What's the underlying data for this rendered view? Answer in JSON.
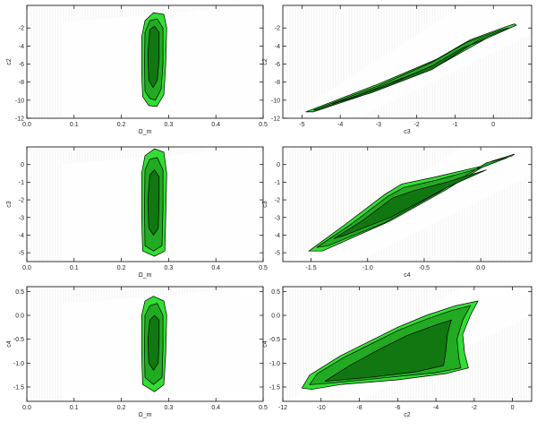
{
  "colors": {
    "outer": "#33dd33",
    "middle": "#22aa22",
    "inner": "#117711",
    "grid": "#cccccc",
    "frame": "#000000",
    "hatch_bg": "#e8e8e8"
  },
  "chart_data": [
    {
      "type": "contour",
      "panel": "top-left",
      "xlabel": "Ω_m",
      "ylabel": "c2",
      "xlim": [
        0.0,
        0.5
      ],
      "ylim": [
        -12,
        0.5
      ],
      "xticks": [
        "0.0",
        "0.1",
        "0.2",
        "0.3",
        "0.4",
        "0.5"
      ],
      "yticks": [
        "-12",
        "-10",
        "-8",
        "-6",
        "-4",
        "-2"
      ],
      "ytick_values": [
        -12,
        -10,
        -8,
        -6,
        -4,
        -2
      ],
      "xtick_values": [
        0.0,
        0.1,
        0.2,
        0.3,
        0.4,
        0.5
      ],
      "contours": [
        {
          "level": "outer",
          "points": [
            [
              0.245,
              -9.6
            ],
            [
              0.243,
              -7
            ],
            [
              0.243,
              -3
            ],
            [
              0.25,
              -1.2
            ],
            [
              0.268,
              -0.3
            ],
            [
              0.29,
              -0.5
            ],
            [
              0.296,
              -2
            ],
            [
              0.294,
              -6
            ],
            [
              0.29,
              -9.4
            ],
            [
              0.275,
              -10.7
            ],
            [
              0.258,
              -10.6
            ]
          ]
        },
        {
          "level": "middle",
          "points": [
            [
              0.25,
              -9
            ],
            [
              0.249,
              -6
            ],
            [
              0.25,
              -2.5
            ],
            [
              0.26,
              -1.2
            ],
            [
              0.276,
              -1
            ],
            [
              0.288,
              -2
            ],
            [
              0.288,
              -6
            ],
            [
              0.284,
              -8.8
            ],
            [
              0.272,
              -10
            ],
            [
              0.26,
              -9.8
            ]
          ]
        },
        {
          "level": "inner",
          "points": [
            [
              0.258,
              -7.8
            ],
            [
              0.256,
              -5
            ],
            [
              0.26,
              -2.2
            ],
            [
              0.27,
              -1.8
            ],
            [
              0.28,
              -2.5
            ],
            [
              0.28,
              -5.5
            ],
            [
              0.276,
              -7.8
            ],
            [
              0.267,
              -8.6
            ]
          ]
        }
      ]
    },
    {
      "type": "contour",
      "panel": "top-right",
      "xlabel": "c3",
      "ylabel": "c2",
      "xlim": [
        -5.5,
        1.0
      ],
      "ylim": [
        -12,
        0.5
      ],
      "xticks": [
        "-5",
        "-4",
        "-3",
        "-2",
        "-1",
        "0"
      ],
      "xtick_values": [
        -5,
        -4,
        -3,
        -2,
        -1,
        0
      ],
      "yticks": [
        "-12",
        "-10",
        "-8",
        "-6",
        "-4",
        "-2"
      ],
      "ytick_values": [
        -12,
        -10,
        -8,
        -6,
        -4,
        -2
      ],
      "contours": [
        {
          "level": "outer",
          "points": [
            [
              -4.9,
              -11.3
            ],
            [
              -3,
              -8.2
            ],
            [
              -1.5,
              -5.5
            ],
            [
              -0.6,
              -3.3
            ],
            [
              0.3,
              -1.9
            ],
            [
              0.55,
              -1.55
            ],
            [
              0.6,
              -1.7
            ],
            [
              -0.2,
              -3.2
            ],
            [
              -1.5,
              -6.3
            ],
            [
              -3.5,
              -9.6
            ],
            [
              -4.7,
              -11.3
            ]
          ]
        },
        {
          "level": "middle",
          "points": [
            [
              -4.7,
              -11.1
            ],
            [
              -3,
              -8.4
            ],
            [
              -1.6,
              -5.8
            ],
            [
              -0.7,
              -3.6
            ],
            [
              0.2,
              -2.2
            ],
            [
              0.4,
              -2.0
            ],
            [
              -0.4,
              -3.4
            ],
            [
              -1.6,
              -6.3
            ],
            [
              -3.5,
              -9.4
            ],
            [
              -4.6,
              -11.1
            ]
          ]
        },
        {
          "level": "inner",
          "points": [
            [
              -4.2,
              -10.4
            ],
            [
              -2.8,
              -8.4
            ],
            [
              -1.6,
              -6.2
            ],
            [
              -0.8,
              -4.2
            ],
            [
              -0.2,
              -3.2
            ],
            [
              -0.6,
              -3.9
            ],
            [
              -1.6,
              -6.6
            ],
            [
              -3.2,
              -9.2
            ]
          ]
        }
      ]
    },
    {
      "type": "contour",
      "panel": "middle-left",
      "xlabel": "Ω_m",
      "ylabel": "c3",
      "xlim": [
        0.0,
        0.5
      ],
      "ylim": [
        -5.5,
        1.0
      ],
      "xticks": [
        "0.0",
        "0.1",
        "0.2",
        "0.3",
        "0.4",
        "0.5"
      ],
      "xtick_values": [
        0.0,
        0.1,
        0.2,
        0.3,
        0.4,
        0.5
      ],
      "yticks": [
        "-5",
        "-4",
        "-3",
        "-2",
        "-1",
        "0"
      ],
      "ytick_values": [
        -5,
        -4,
        -3,
        -2,
        -1,
        0
      ],
      "contours": [
        {
          "level": "outer",
          "points": [
            [
              0.245,
              -4.9
            ],
            [
              0.243,
              -3
            ],
            [
              0.243,
              -0.5
            ],
            [
              0.25,
              0.5
            ],
            [
              0.27,
              0.9
            ],
            [
              0.29,
              0.7
            ],
            [
              0.296,
              -0.5
            ],
            [
              0.294,
              -3
            ],
            [
              0.292,
              -4.9
            ],
            [
              0.27,
              -5.2
            ]
          ]
        },
        {
          "level": "middle",
          "points": [
            [
              0.25,
              -4.6
            ],
            [
              0.249,
              -2.5
            ],
            [
              0.25,
              -0.3
            ],
            [
              0.26,
              0.3
            ],
            [
              0.276,
              0.4
            ],
            [
              0.288,
              -0.3
            ],
            [
              0.288,
              -2.5
            ],
            [
              0.286,
              -4.6
            ],
            [
              0.268,
              -4.9
            ]
          ]
        },
        {
          "level": "inner",
          "points": [
            [
              0.258,
              -3.6
            ],
            [
              0.256,
              -2
            ],
            [
              0.26,
              -0.6
            ],
            [
              0.27,
              -0.3
            ],
            [
              0.28,
              -0.7
            ],
            [
              0.28,
              -2
            ],
            [
              0.278,
              -3.6
            ],
            [
              0.268,
              -4.0
            ]
          ]
        }
      ]
    },
    {
      "type": "contour",
      "panel": "middle-right",
      "xlabel": "c4",
      "ylabel": "c3",
      "xlim": [
        -1.75,
        0.45
      ],
      "ylim": [
        -5.5,
        1.0
      ],
      "xticks": [
        "-1.5",
        "-1.0",
        "-0.5",
        "0.0"
      ],
      "xtick_values": [
        -1.5,
        -1.0,
        -0.5,
        0.0
      ],
      "yticks": [
        "-5",
        "-4",
        "-3",
        "-2",
        "-1",
        "0"
      ],
      "ytick_values": [
        -5,
        -4,
        -3,
        -2,
        -1,
        0
      ],
      "contours": [
        {
          "level": "outer",
          "points": [
            [
              -1.52,
              -4.9
            ],
            [
              -1.2,
              -3.4
            ],
            [
              -0.85,
              -1.7
            ],
            [
              -0.7,
              -1.1
            ],
            [
              -0.4,
              -0.7
            ],
            [
              0.0,
              -0.1
            ],
            [
              0.28,
              0.5
            ],
            [
              0.3,
              0.6
            ],
            [
              0.1,
              0.2
            ],
            [
              -0.3,
              -1.4
            ],
            [
              -0.8,
              -3.2
            ],
            [
              -1.4,
              -4.9
            ]
          ]
        },
        {
          "level": "middle",
          "points": [
            [
              -1.45,
              -4.7
            ],
            [
              -1.15,
              -3.4
            ],
            [
              -0.82,
              -1.8
            ],
            [
              -0.68,
              -1.3
            ],
            [
              -0.4,
              -0.9
            ],
            [
              0.0,
              -0.2
            ],
            [
              0.24,
              0.4
            ],
            [
              0.05,
              0.1
            ],
            [
              -0.35,
              -1.5
            ],
            [
              -0.85,
              -3.3
            ],
            [
              -1.35,
              -4.6
            ]
          ]
        },
        {
          "level": "inner",
          "points": [
            [
              -1.3,
              -4.2
            ],
            [
              -1.05,
              -3.2
            ],
            [
              -0.78,
              -1.9
            ],
            [
              -0.6,
              -1.5
            ],
            [
              -0.3,
              -1.0
            ],
            [
              0.05,
              -0.3
            ],
            [
              -0.3,
              -1.3
            ],
            [
              -0.8,
              -3.0
            ],
            [
              -1.2,
              -4.0
            ]
          ]
        }
      ]
    },
    {
      "type": "contour",
      "panel": "bottom-left",
      "xlabel": "Ω_m",
      "ylabel": "c4",
      "xlim": [
        0.0,
        0.5
      ],
      "ylim": [
        -1.8,
        0.6
      ],
      "xticks": [
        "0.0",
        "0.1",
        "0.2",
        "0.3",
        "0.4",
        "0.5"
      ],
      "xtick_values": [
        0.0,
        0.1,
        0.2,
        0.3,
        0.4,
        0.5
      ],
      "yticks": [
        "-1.5",
        "-1.0",
        "-0.5",
        "0.0",
        "0.5"
      ],
      "ytick_values": [
        -1.5,
        -1.0,
        -0.5,
        0.0,
        0.5
      ],
      "contours": [
        {
          "level": "outer",
          "points": [
            [
              0.245,
              -1.45
            ],
            [
              0.243,
              -0.8
            ],
            [
              0.243,
              0.0
            ],
            [
              0.25,
              0.3
            ],
            [
              0.268,
              0.4
            ],
            [
              0.29,
              0.3
            ],
            [
              0.296,
              0.0
            ],
            [
              0.294,
              -0.8
            ],
            [
              0.29,
              -1.45
            ],
            [
              0.27,
              -1.6
            ]
          ]
        },
        {
          "level": "middle",
          "points": [
            [
              0.25,
              -1.3
            ],
            [
              0.249,
              -0.7
            ],
            [
              0.25,
              0.0
            ],
            [
              0.26,
              0.2
            ],
            [
              0.276,
              0.25
            ],
            [
              0.288,
              0.0
            ],
            [
              0.288,
              -0.7
            ],
            [
              0.286,
              -1.3
            ],
            [
              0.268,
              -1.45
            ]
          ]
        },
        {
          "level": "inner",
          "points": [
            [
              0.258,
              -1.0
            ],
            [
              0.256,
              -0.5
            ],
            [
              0.26,
              -0.1
            ],
            [
              0.27,
              0.0
            ],
            [
              0.28,
              -0.1
            ],
            [
              0.28,
              -0.5
            ],
            [
              0.278,
              -1.0
            ],
            [
              0.268,
              -1.15
            ]
          ]
        }
      ]
    },
    {
      "type": "contour",
      "panel": "bottom-right",
      "xlabel": "c2",
      "ylabel": "c4",
      "xlim": [
        -12,
        1.0
      ],
      "ylim": [
        -1.8,
        0.6
      ],
      "xticks": [
        "-12",
        "-10",
        "-8",
        "-6",
        "-4",
        "-2",
        "0"
      ],
      "xtick_values": [
        -12,
        -10,
        -8,
        -6,
        -4,
        -2,
        0
      ],
      "yticks": [
        "-1.5",
        "-1.0",
        "-0.5",
        "0.0",
        "0.5"
      ],
      "ytick_values": [
        -1.5,
        -1.0,
        -0.5,
        0.0,
        0.5
      ],
      "contours": [
        {
          "level": "outer",
          "points": [
            [
              -11,
              -1.52
            ],
            [
              -10.6,
              -1.25
            ],
            [
              -9,
              -0.85
            ],
            [
              -7.5,
              -0.55
            ],
            [
              -6,
              -0.25
            ],
            [
              -4.5,
              0.0
            ],
            [
              -3,
              0.2
            ],
            [
              -1.8,
              0.3
            ],
            [
              -2.2,
              0.0
            ],
            [
              -2.6,
              -0.4
            ],
            [
              -2.5,
              -0.8
            ],
            [
              -2.3,
              -1.1
            ],
            [
              -3.5,
              -1.22
            ],
            [
              -6,
              -1.35
            ],
            [
              -9,
              -1.45
            ],
            [
              -10.5,
              -1.55
            ]
          ]
        },
        {
          "level": "middle",
          "points": [
            [
              -10.6,
              -1.45
            ],
            [
              -10.2,
              -1.22
            ],
            [
              -8.8,
              -0.88
            ],
            [
              -7.4,
              -0.6
            ],
            [
              -6,
              -0.32
            ],
            [
              -4.5,
              -0.08
            ],
            [
              -3.2,
              0.1
            ],
            [
              -2.2,
              0.2
            ],
            [
              -2.6,
              -0.1
            ],
            [
              -2.9,
              -0.5
            ],
            [
              -2.8,
              -0.9
            ],
            [
              -2.7,
              -1.1
            ],
            [
              -4,
              -1.2
            ],
            [
              -6.5,
              -1.3
            ],
            [
              -9.5,
              -1.42
            ]
          ]
        },
        {
          "level": "inner",
          "points": [
            [
              -9.8,
              -1.38
            ],
            [
              -8.5,
              -1.05
            ],
            [
              -7,
              -0.72
            ],
            [
              -5.5,
              -0.42
            ],
            [
              -4,
              -0.2
            ],
            [
              -3.2,
              -0.1
            ],
            [
              -3.4,
              -0.4
            ],
            [
              -3.5,
              -0.8
            ],
            [
              -3.6,
              -1.05
            ],
            [
              -5,
              -1.18
            ],
            [
              -7.5,
              -1.3
            ]
          ]
        }
      ]
    }
  ]
}
